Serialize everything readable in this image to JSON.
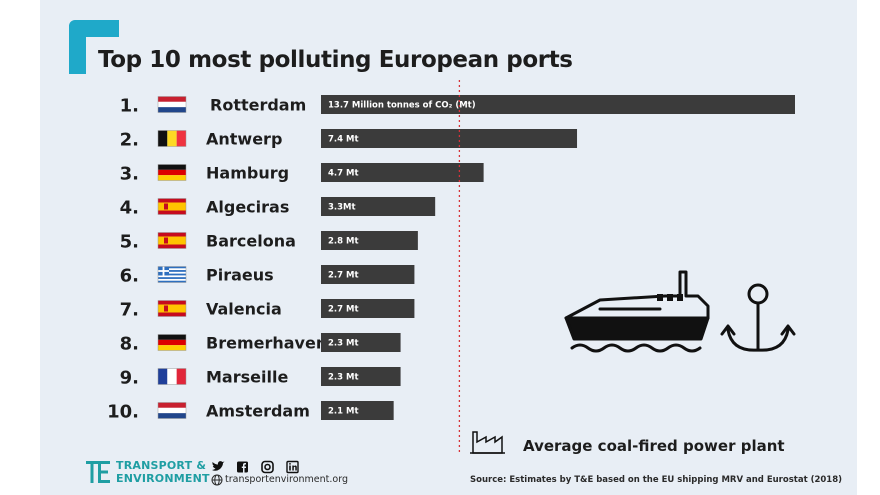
{
  "header": {
    "title": "Top 10 most polluting European ports"
  },
  "chart_data": {
    "type": "bar",
    "orientation": "horizontal",
    "title": "Top 10 most polluting European ports",
    "unit_label": "Million tonnes of CO2 (Mt)",
    "categories": [
      "Rotterdam",
      "Antwerp",
      "Hamburg",
      "Algeciras",
      "Barcelona",
      "Piraeus",
      "Valencia",
      "Bremerhaven",
      "Marseille",
      "Amsterdam"
    ],
    "ranks": [
      "1.",
      "2.",
      "3.",
      "4.",
      "5.",
      "6.",
      "7.",
      "8.",
      "9.",
      "10."
    ],
    "flags": [
      "NL",
      "BE",
      "DE",
      "ES",
      "ES",
      "GR",
      "ES",
      "DE",
      "FR",
      "NL"
    ],
    "values": [
      13.7,
      7.4,
      4.7,
      3.3,
      2.8,
      2.7,
      2.7,
      2.3,
      2.3,
      2.1
    ],
    "value_labels": [
      "13.7 Million tonnes of CO₂ (Mt)",
      "7.4 Mt",
      "4.7 Mt",
      "3.3Mt",
      "2.8 Mt",
      "2.7 Mt",
      "2.7 Mt",
      "2.3 Mt",
      "2.3 Mt",
      "2.1 Mt"
    ],
    "reference_line": {
      "value": 4.0,
      "label": "Average coal-fired power plant",
      "style": "dotted",
      "color": "#d6333a"
    },
    "xlim": [
      0,
      13.7
    ],
    "grid": false,
    "bar_color": "#3b3b3b"
  },
  "legend": {
    "text": "Average coal-fired power plant"
  },
  "footer": {
    "source": "Source: Estimates by T&E based on the EU shipping MRV and Eurostat (2018)",
    "brand_line1": "TRANSPORT &",
    "brand_line2": "ENVIRONMENT",
    "website": "transportenvironment.org",
    "social_icons": [
      "twitter-icon",
      "facebook-icon",
      "instagram-icon",
      "linkedin-icon"
    ]
  },
  "colors": {
    "accent": "#1fa9c9",
    "brand": "#1f9ea3",
    "background": "#e8eef5",
    "reference": "#d6333a"
  }
}
